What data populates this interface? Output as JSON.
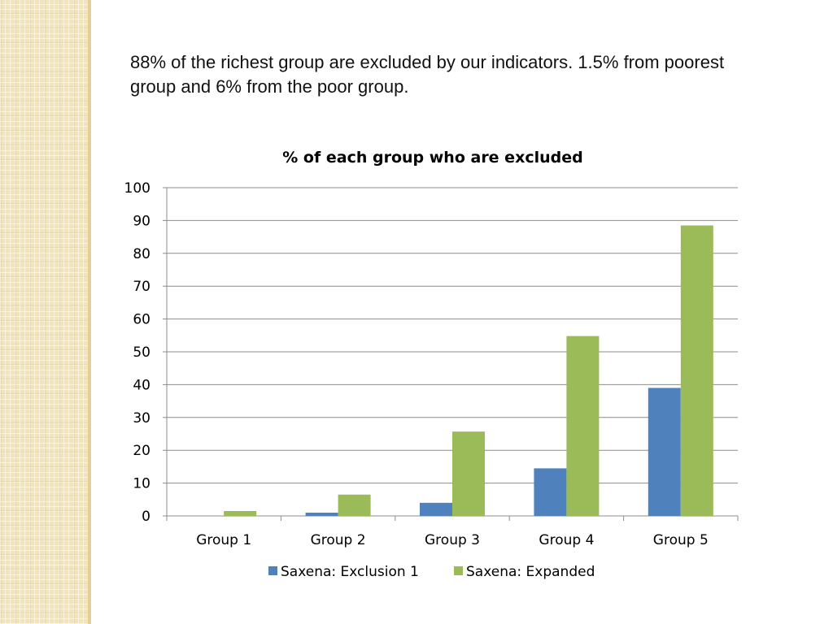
{
  "slide": {
    "text": "88% of the richest group are excluded by our indicators. 1.5% from poorest group and 6% from the poor group."
  },
  "chart_data": {
    "type": "bar",
    "title": "% of each group who are excluded",
    "categories": [
      "Group 1",
      "Group 2",
      "Group 3",
      "Group 4",
      "Group 5"
    ],
    "series": [
      {
        "name": "Saxena: Exclusion 1",
        "color": "#4f81bd",
        "values": [
          0,
          1,
          4,
          14.5,
          39
        ]
      },
      {
        "name": "Saxena: Expanded",
        "color": "#9bbb59",
        "values": [
          1.5,
          6.5,
          25.7,
          54.8,
          88.5
        ]
      }
    ],
    "ylim": [
      0,
      100
    ],
    "yticks": [
      "0",
      "10",
      "20",
      "30",
      "40",
      "50",
      "60",
      "70",
      "80",
      "90",
      "100"
    ],
    "grid": true,
    "legend_position": "bottom"
  }
}
